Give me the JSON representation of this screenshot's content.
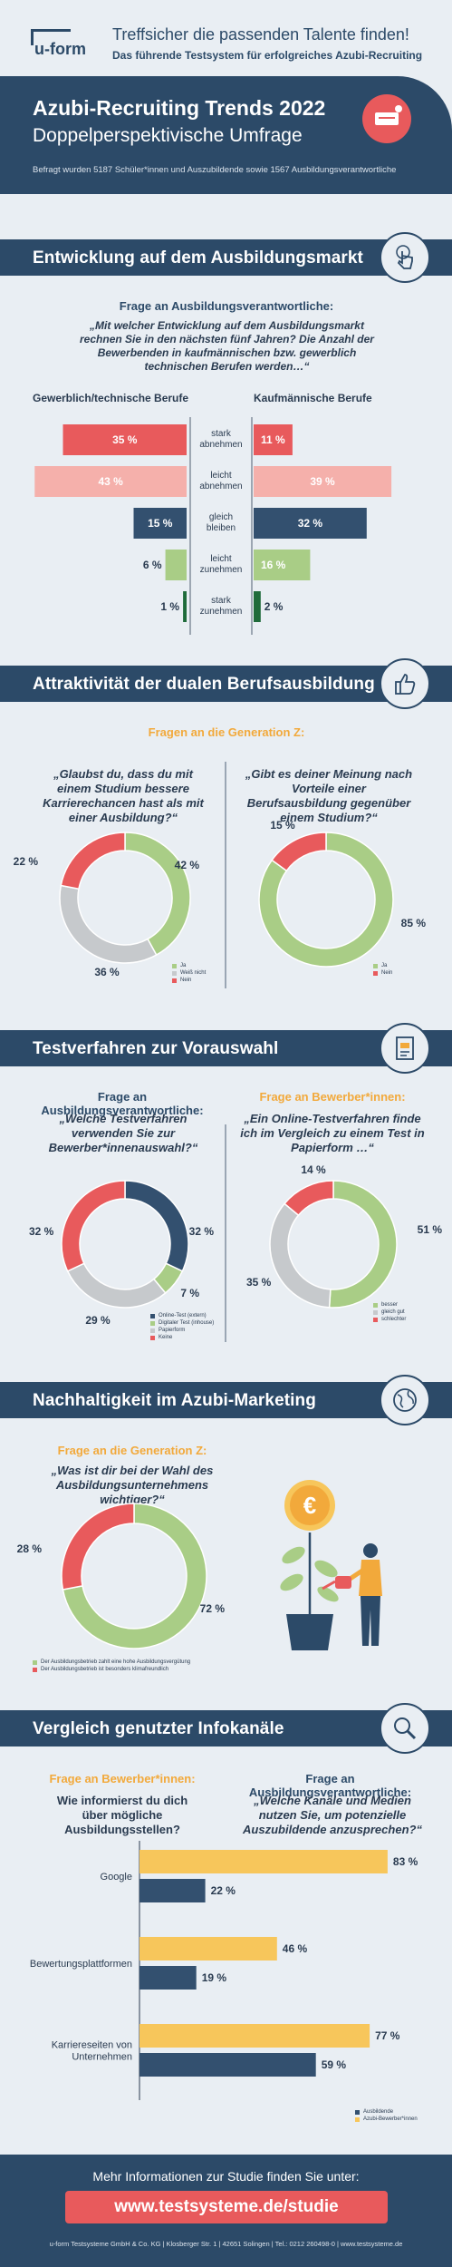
{
  "header": {
    "logo_text": "u-form",
    "headline": "Treffsicher die passenden Talente finden!",
    "subline": "Das führende Testsystem für erfolgreiches Azubi-Recruiting"
  },
  "hero": {
    "title": "Azubi-Recruiting Trends 2022",
    "subtitle": "Doppelperspektivische Umfrage",
    "survey_note": "Befragt wurden 5187 Schüler*innen und Auszubildende sowie 1567 Ausbildungsverantwortliche"
  },
  "sections": {
    "s1": "Entwicklung auf dem Ausbildungsmarkt",
    "s2": "Attraktivität der dualen Berufsausbildung",
    "s3": "Testverfahren zur Vorauswahl",
    "s4": "Nachhaltigkeit im Azubi-Marketing",
    "s5": "Vergleich genutzter Infokanäle"
  },
  "colors": {
    "navy": "#2c4a68",
    "red": "#e85a5c",
    "pink": "#f5b0ab",
    "blue": "#33506f",
    "green": "#a9cd86",
    "darkgreen": "#1f6b3a",
    "grey": "#c6c9cc",
    "yellow": "#f7c65b",
    "orange": "#f2a93b"
  },
  "market": {
    "question_label": "Frage an Ausbildungsverantwortliche:",
    "question": "„Mit welcher Entwicklung auf dem Ausbildungsmarkt rechnen Sie in den nächsten fünf Jahren? Die Anzahl der Bewerbenden in kaufmännischen bzw. gewerblich technischen Berufen werden…“",
    "left_header": "Gewerblich/technische Berufe",
    "right_header": "Kaufmännische Berufe"
  },
  "generation_z": {
    "label": "Fragen an die Generation Z:",
    "q1": "„Glaubst du, dass du mit einem Studium bessere Karrierechancen hast als mit einer Ausbildung?“",
    "q2": "„Gibt es deiner Meinung nach Vorteile einer Berufsausbildung  gegenüber einem Studium?“"
  },
  "tests": {
    "label_left": "Frage an Ausbildungsverantwortliche:",
    "q_left": "„Welche Testverfahren verwenden Sie zur Bewerber*innenauswahl?“",
    "label_right": "Frage an Bewerber*innen:",
    "q_right": "„Ein Online-Testverfahren finde ich im Vergleich zu einem Test in Papierform …“"
  },
  "sustain": {
    "label": "Frage an die Generation Z:",
    "question": "„Was ist dir bei der Wahl des Ausbildungsunternehmens wichtiger?“"
  },
  "channels": {
    "label_left": "Frage an Bewerber*innen:",
    "q_left": "Wie informierst du dich über mögliche Ausbildungsstellen?",
    "label_right": "Frage an Ausbildungsverantwortliche:",
    "q_right": "„Welche Kanäle und Medien nutzen Sie, um potenzielle Auszubildende anzusprechen?“"
  },
  "footer": {
    "more_info": "Mehr Informationen zur Studie finden Sie unter:",
    "url": "www.testsysteme.de/studie",
    "imprint": "u-form Testsysteme GmbH & Co. KG  |  Klosberger Str. 1  |  42651 Solingen  |  Tel.: 0212 260498-0  |  www.testsysteme.de"
  },
  "chart_data": [
    {
      "type": "bar",
      "orientation": "diverging-horizontal",
      "categories": [
        "stark abnehmen",
        "leicht abnehmen",
        "gleich bleiben",
        "leicht zunehmen",
        "stark zunehmen"
      ],
      "category_labels": [
        [
          "stark",
          "abnehmen"
        ],
        [
          "leicht",
          "abnehmen"
        ],
        [
          "gleich",
          "bleiben"
        ],
        [
          "leicht",
          "zunehmen"
        ],
        [
          "stark",
          "zunehmen"
        ]
      ],
      "bar_colors": [
        "#e85a5c",
        "#f5b0ab",
        "#33506f",
        "#a9cd86",
        "#1f6b3a"
      ],
      "series": [
        {
          "name": "Gewerblich/technische Berufe",
          "values": [
            35,
            43,
            15,
            6,
            1
          ],
          "labels": [
            "35 %",
            "43 %",
            "15 %",
            "6 %",
            "1 %"
          ]
        },
        {
          "name": "Kaufmännische Berufe",
          "values": [
            11,
            39,
            32,
            16,
            2
          ],
          "labels": [
            "11 %",
            "39 %",
            "32 %",
            "16 %",
            "2 %"
          ]
        }
      ]
    },
    {
      "type": "pie",
      "variant": "donut",
      "segments": [
        {
          "name": "Ja",
          "value": 42,
          "label": "42 %",
          "color": "#a9cd86"
        },
        {
          "name": "Weiß nicht",
          "value": 36,
          "label": "36 %",
          "color": "#c6c9cc"
        },
        {
          "name": "Nein",
          "value": 22,
          "label": "22 %",
          "color": "#e85a5c"
        }
      ]
    },
    {
      "type": "pie",
      "variant": "donut",
      "segments": [
        {
          "name": "Ja",
          "value": 85,
          "label": "85 %",
          "color": "#a9cd86"
        },
        {
          "name": "Nein",
          "value": 15,
          "label": "15 %",
          "color": "#e85a5c"
        }
      ]
    },
    {
      "type": "pie",
      "variant": "donut",
      "segments": [
        {
          "name": "Online-Test (extern)",
          "value": 32,
          "label": "32 %",
          "color": "#33506f"
        },
        {
          "name": "Digitaler Test (inhouse)",
          "value": 7,
          "label": "7 %",
          "color": "#a9cd86"
        },
        {
          "name": "Papierform",
          "value": 29,
          "label": "29 %",
          "color": "#c6c9cc"
        },
        {
          "name": "Keine",
          "value": 32,
          "label": "32 %",
          "color": "#e85a5c"
        }
      ]
    },
    {
      "type": "pie",
      "variant": "donut",
      "segments": [
        {
          "name": "besser",
          "value": 51,
          "label": "51 %",
          "color": "#a9cd86"
        },
        {
          "name": "gleich gut",
          "value": 35,
          "label": "35 %",
          "color": "#c6c9cc"
        },
        {
          "name": "schlechter",
          "value": 14,
          "label": "14 %",
          "color": "#e85a5c"
        }
      ]
    },
    {
      "type": "pie",
      "variant": "donut",
      "segments": [
        {
          "name": "Der Ausbildungsbetrieb zahlt eine hohe Ausbildungsvergütung",
          "value": 72,
          "label": "72 %",
          "color": "#a9cd86"
        },
        {
          "name": "Der Ausbildungsbetrieb ist besonders klimafreundlich",
          "value": 28,
          "label": "28 %",
          "color": "#e85a5c"
        }
      ]
    },
    {
      "type": "bar",
      "orientation": "horizontal",
      "categories": [
        [
          "Google"
        ],
        [
          "Bewertungsplattformen"
        ],
        [
          "Karriereseiten von",
          "Unternehmen"
        ]
      ],
      "xlim": [
        0,
        100
      ],
      "series": [
        {
          "name": "Ausbildende",
          "color": "#33506f",
          "values": [
            22,
            19,
            59
          ],
          "labels": [
            "22 %",
            "19 %",
            "59 %"
          ]
        },
        {
          "name": "Azubi-Bewerber*innen",
          "color": "#f7c65b",
          "values": [
            83,
            46,
            77
          ],
          "labels": [
            "83 %",
            "46 %",
            "77 %"
          ]
        }
      ]
    }
  ]
}
